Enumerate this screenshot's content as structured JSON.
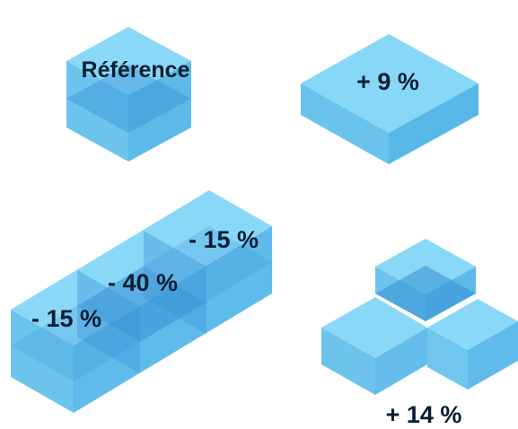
{
  "labels": {
    "reference": "Référence",
    "single_low": "+ 9 %",
    "row_left": "- 15 %",
    "row_middle": "- 40 %",
    "row_right": "- 15 %",
    "l_shape": "+ 14 %"
  },
  "colors": {
    "cube_top": "#7dd4f6",
    "cube_side_left": "#5cbeeb",
    "cube_side_right": "#49b2e6",
    "overlap": "#3a95d6",
    "label_text": "#0b1d33"
  }
}
